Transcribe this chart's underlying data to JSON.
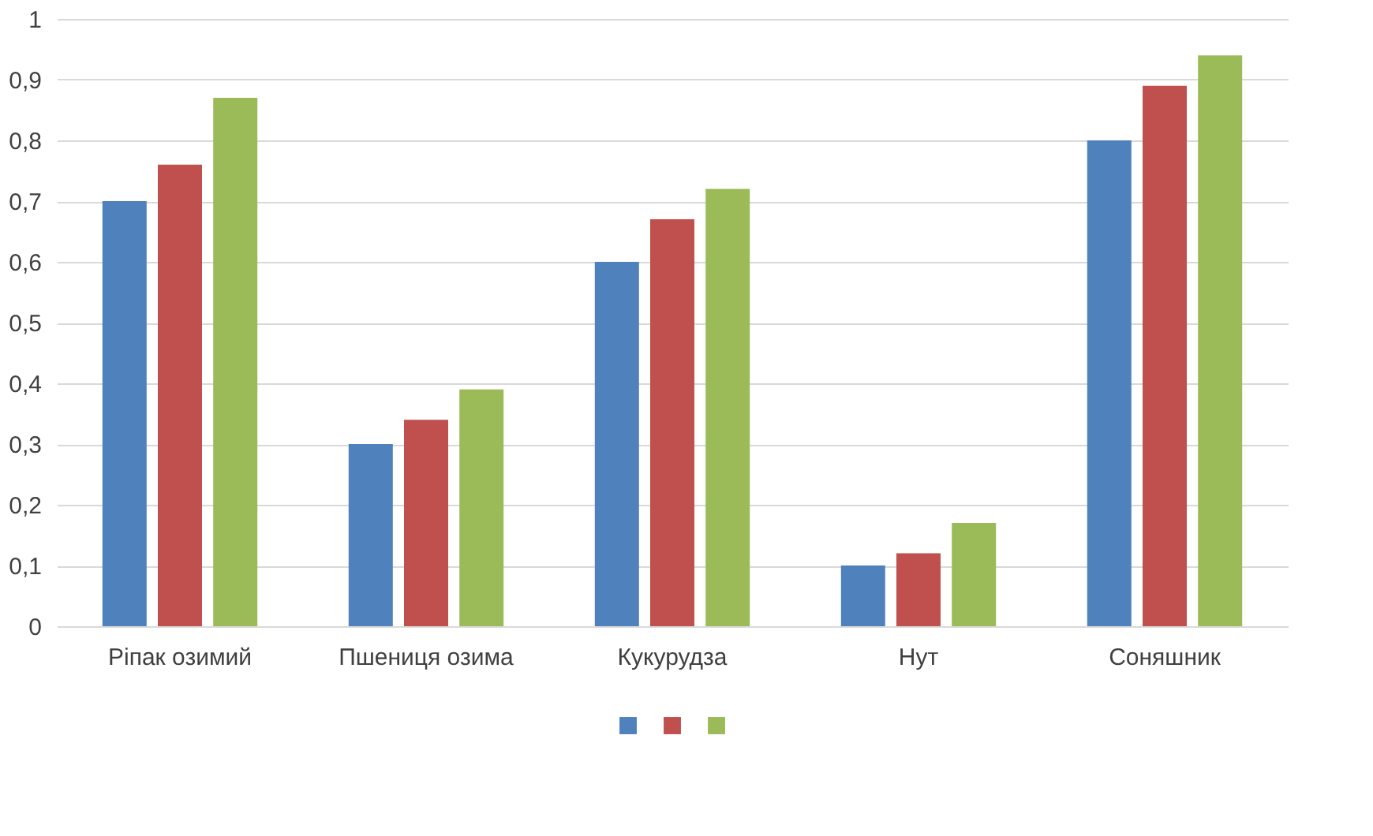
{
  "chart_data": {
    "type": "bar",
    "categories": [
      "Ріпак озимий",
      "Пшениця озима",
      "Кукурудза",
      "Нут",
      "Соняшник"
    ],
    "series": [
      {
        "color": "#4f81bd",
        "values": [
          0.7,
          0.3,
          0.6,
          0.1,
          0.8
        ]
      },
      {
        "color": "#c0504d",
        "values": [
          0.76,
          0.34,
          0.67,
          0.12,
          0.89
        ]
      },
      {
        "color": "#9bbb59",
        "values": [
          0.87,
          0.39,
          0.72,
          0.17,
          0.94
        ]
      }
    ],
    "ylim": [
      0,
      1
    ],
    "yticks": [
      0,
      {
        "value": 0.1,
        "label": "0,1"
      },
      {
        "value": 0.2,
        "label": "0,2"
      },
      {
        "value": 0.3,
        "label": "0,3"
      },
      {
        "value": 0.4,
        "label": "0,4"
      },
      {
        "value": 0.5,
        "label": "0,5"
      },
      {
        "value": 0.6,
        "label": "0,6"
      },
      {
        "value": 0.7,
        "label": "0,7"
      },
      {
        "value": 0.8,
        "label": "0,8"
      },
      {
        "value": 0.9,
        "label": "0,9"
      },
      1
    ],
    "grid": "y"
  }
}
